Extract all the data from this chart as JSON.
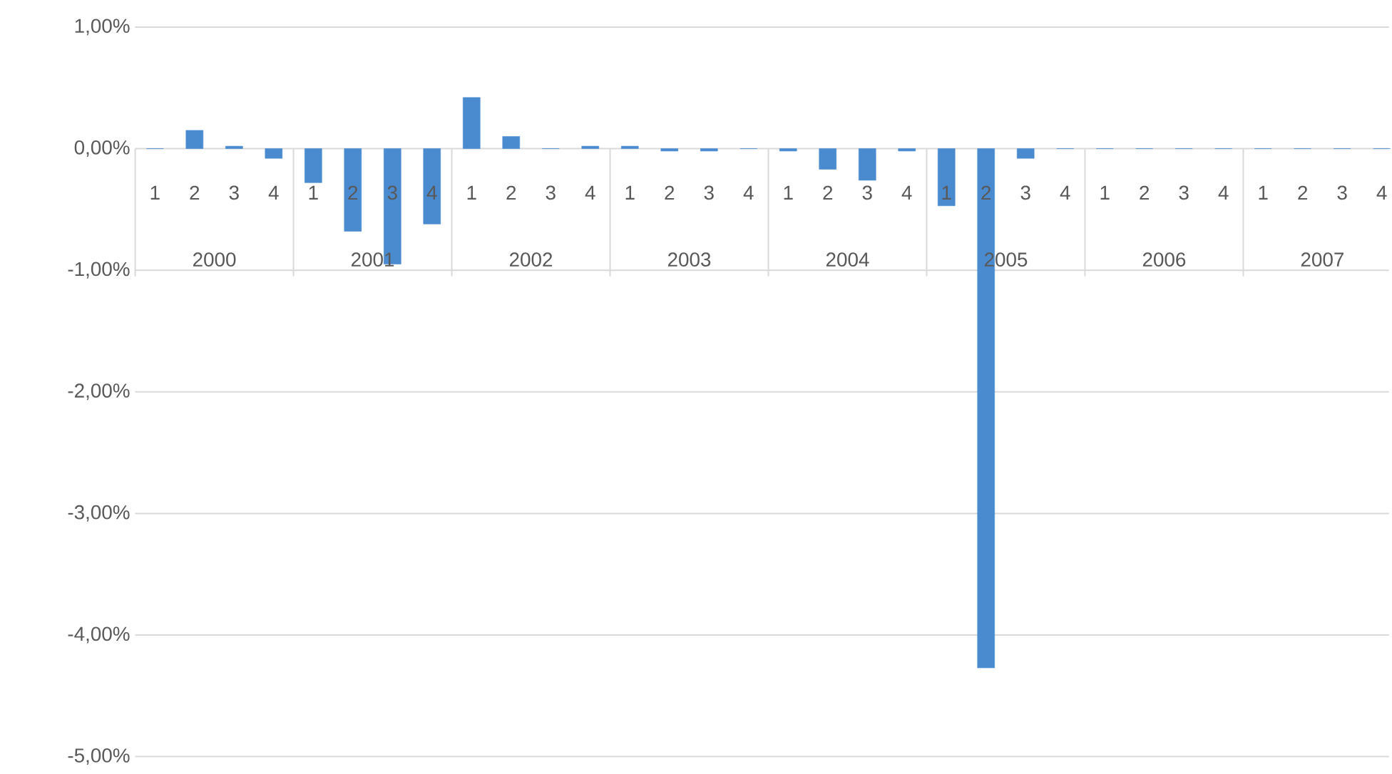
{
  "chart_data": {
    "type": "bar",
    "categories": [
      "1",
      "2",
      "3",
      "4",
      "1",
      "2",
      "3",
      "4",
      "1",
      "2",
      "3",
      "4",
      "1",
      "2",
      "3",
      "4",
      "1",
      "2",
      "3",
      "4",
      "1",
      "2",
      "3",
      "4",
      "1",
      "2",
      "3",
      "4",
      "1",
      "2",
      "3",
      "4"
    ],
    "values": [
      0,
      0.15,
      0.02,
      -0.08,
      -0.28,
      -0.68,
      -0.95,
      -0.62,
      0.42,
      0.1,
      0,
      0.02,
      0.02,
      -0.02,
      -0.02,
      0,
      -0.02,
      -0.17,
      -0.26,
      -0.02,
      -0.47,
      -4.27,
      -0.08,
      0,
      0,
      0,
      0,
      0,
      0,
      0,
      0,
      0
    ],
    "color": "#4a8bd0",
    "ylim": [
      -5,
      1
    ],
    "yticks": [
      {
        "value": 1,
        "label": "1,00%"
      },
      {
        "value": 0,
        "label": "0,00%"
      },
      {
        "value": -1,
        "label": "-1,00%"
      },
      {
        "value": -2,
        "label": "-2,00%"
      },
      {
        "value": -3,
        "label": "-3,00%"
      },
      {
        "value": -4,
        "label": "-4,00%"
      },
      {
        "value": -5,
        "label": "-5,00%"
      }
    ],
    "grid": "y",
    "annotations": [
      "2000",
      "2001",
      "2002",
      "2003",
      "2004",
      "2005",
      "2006",
      "2007"
    ]
  }
}
